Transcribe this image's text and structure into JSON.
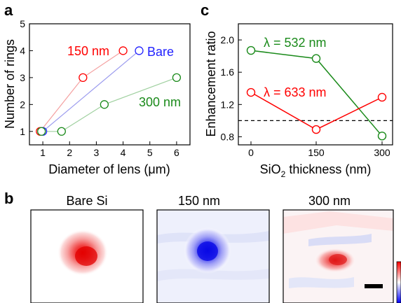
{
  "panels": {
    "a": "a",
    "b": "b",
    "c": "c"
  },
  "chart_data": [
    {
      "type": "line",
      "panel": "a",
      "xlabel": "Diameter of lens (μm)",
      "ylabel": "Number of rings",
      "xlim": [
        0.5,
        6.5
      ],
      "ylim": [
        0.5,
        5
      ],
      "xticks": [
        "1",
        "2",
        "3",
        "4",
        "5",
        "6"
      ],
      "yticks": [
        "1",
        "2",
        "3",
        "4",
        "5"
      ],
      "grid": false,
      "series": [
        {
          "name": "150 nm",
          "color": "#ff0000",
          "line_color": "#f4a0a0",
          "x": [
            0.9,
            2.5,
            4.0
          ],
          "y": [
            1,
            3,
            4
          ]
        },
        {
          "name": "Bare",
          "color": "#2222ff",
          "line_color": "#9a9aee",
          "x": [
            1.0,
            4.6
          ],
          "y": [
            1,
            4
          ]
        },
        {
          "name": "300 nm",
          "color": "#1a8a1a",
          "line_color": "#9fd09f",
          "x": [
            0.95,
            1.7,
            3.3,
            6.0
          ],
          "y": [
            1,
            1,
            2,
            3
          ]
        }
      ]
    },
    {
      "type": "line",
      "panel": "c",
      "xlabel_parts": [
        "SiO",
        "2",
        " thickness (nm)"
      ],
      "ylabel": "Enhancement ratio",
      "categories": [
        "0",
        "150",
        "300"
      ],
      "ylim": [
        0.7,
        2.2
      ],
      "yticks": [
        "0.8",
        "1.2",
        "1.6",
        "2.0"
      ],
      "reference_line": {
        "y": 1.0,
        "style": "dashed",
        "color": "#000000"
      },
      "grid": false,
      "series": [
        {
          "name": "λ = 532 nm",
          "color": "#1a8a1a",
          "values": [
            1.87,
            1.77,
            0.81
          ]
        },
        {
          "name": "λ = 633 nm",
          "color": "#ff0000",
          "values": [
            1.35,
            0.89,
            1.29
          ]
        }
      ]
    },
    {
      "type": "heatmap",
      "panel": "b",
      "maps": [
        {
          "title": "Bare Si",
          "spot_color": "red",
          "spot_strength": 0.85
        },
        {
          "title": "150 nm",
          "spot_color": "blue",
          "spot_strength": 0.9
        },
        {
          "title": "300 nm",
          "spot_color": "red",
          "spot_strength": 0.75
        }
      ],
      "colorbar": {
        "top_color": "#ff0000",
        "bottom_color": "#0000ff"
      }
    }
  ]
}
